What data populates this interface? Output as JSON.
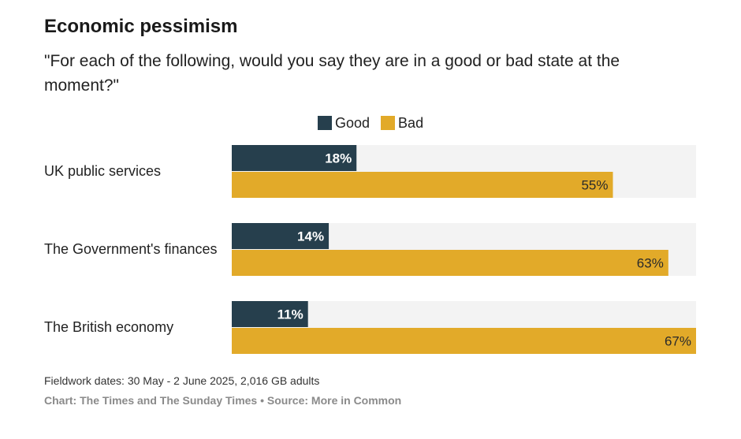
{
  "header": {
    "title": "Economic pessimism",
    "subtitle": "\"For each of the following, would you say they are in a good or bad state at the moment?\""
  },
  "legend": {
    "good_label": "Good",
    "bad_label": "Bad"
  },
  "colors": {
    "good": "#263f4d",
    "bad": "#e2aa29",
    "track": "#f3f3f3"
  },
  "chart_data": {
    "type": "bar",
    "orientation": "horizontal",
    "categories": [
      "UK public services",
      "The Government's finances",
      "The British economy"
    ],
    "series": [
      {
        "name": "Good",
        "values": [
          18,
          14,
          11
        ],
        "labels": [
          "18%",
          "14%",
          "11%"
        ]
      },
      {
        "name": "Bad",
        "values": [
          55,
          63,
          67
        ],
        "labels": [
          "55%",
          "63%",
          "67%"
        ]
      }
    ],
    "xlim": [
      0,
      67
    ],
    "legend_position": "top"
  },
  "footer": {
    "fieldwork": "Fieldwork dates: 30 May - 2 June 2025, 2,016 GB adults",
    "credit": "Chart: The Times and The Sunday Times • Source: More in Common"
  }
}
